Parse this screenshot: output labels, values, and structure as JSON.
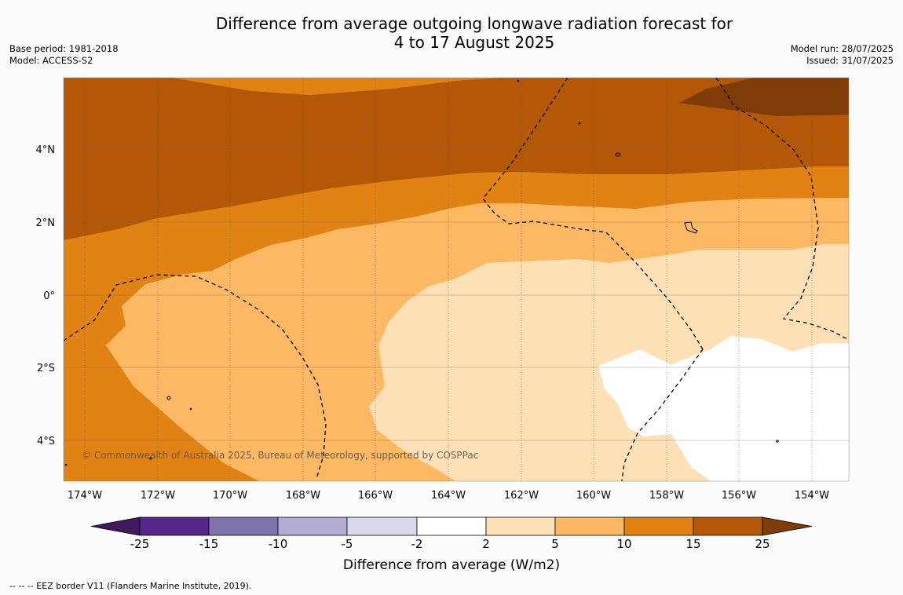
{
  "title_line1": "Difference from average outgoing longwave radiation forecast for",
  "title_line2": "4 to 17 August 2025",
  "meta_left": {
    "base_period": "Base period: 1981-2018",
    "model": "Model: ACCESS-S2"
  },
  "meta_right": {
    "model_run": "Model run: 28/07/2025",
    "issued": "Issued: 31/07/2025"
  },
  "copyright": "© Commonwealth of Australia 2025, Bureau of Meteorology, supported by COSPPac",
  "lat_labels": [
    "4°N",
    "2°N",
    "0°",
    "2°S",
    "4°S"
  ],
  "lon_labels": [
    "174°W",
    "172°W",
    "170°W",
    "168°W",
    "166°W",
    "164°W",
    "162°W",
    "160°W",
    "158°W",
    "156°W",
    "154°W"
  ],
  "colorbar": {
    "label": "Difference from average (W/m2)",
    "ticks": [
      "-25",
      "-15",
      "-10",
      "-5",
      "-2",
      "2",
      "5",
      "10",
      "15",
      "25"
    ],
    "colors": [
      "#3f1a5e",
      "#542788",
      "#8073ac",
      "#b2abd2",
      "#d8daeb",
      "#ffffff",
      "#fee0b6",
      "#fdb863",
      "#e08214",
      "#b35806",
      "#7f3b08"
    ]
  },
  "footnote": "--  --  -- EEZ border V11 (Flanders Marine Institute, 2019)."
}
